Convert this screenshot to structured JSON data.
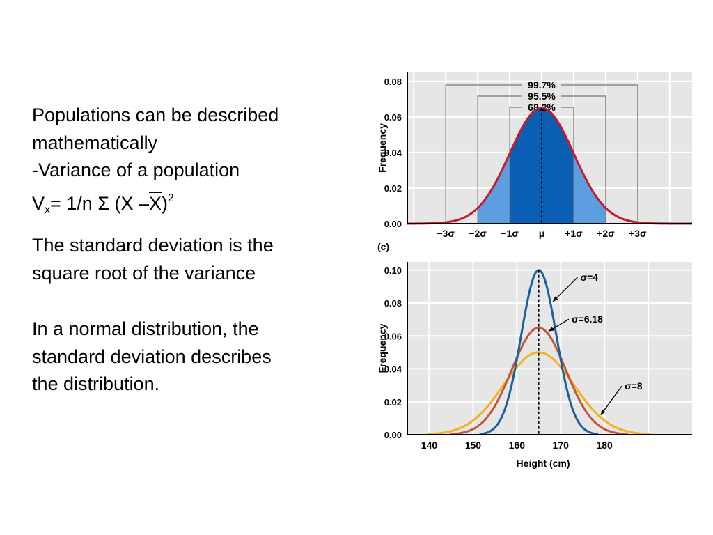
{
  "text": {
    "line1": "Populations can be described",
    "line2": "mathematically",
    "line3": "-Variance of a population",
    "formula": {
      "v": "V",
      "sub": "x",
      "eq": "= 1/n Σ (X –",
      "xbar": "X",
      "close": ")",
      "sup": "2"
    },
    "p2_line1": "The standard deviation is the",
    "p2_line2": "square root of the variance",
    "p3_line1": "In a normal distribution, the",
    "p3_line2": "standard deviation describes",
    "p3_line3": "the distribution."
  },
  "panel_label": "(c)",
  "colors": {
    "panel_bg": "#e6e6e6",
    "curve_red": "#c8182b",
    "fill_dark": "#0a5fb4",
    "fill_light": "#5b9fe0",
    "sigma4": "#1b5fa0",
    "sigma618": "#c0553a",
    "sigma8": "#f2b21c"
  },
  "chart_data": [
    {
      "type": "area",
      "ylabel": "Frequency",
      "ylim": [
        0,
        0.085
      ],
      "yticks": [
        "0.00",
        "0.02",
        "0.04",
        "0.06",
        "0.08"
      ],
      "xticks": [
        "−3σ",
        "−2σ",
        "−1σ",
        "μ",
        "+1σ",
        "+2σ",
        "+3σ"
      ],
      "xrange_sigma": [
        -4.2,
        4.7
      ],
      "peak": 0.065,
      "grid": true,
      "brackets": [
        {
          "label": "99.7%",
          "from": -3,
          "to": 3
        },
        {
          "label": "95.5%",
          "from": -2,
          "to": 2
        },
        {
          "label": "68.2%",
          "from": -1,
          "to": 1
        }
      ]
    },
    {
      "type": "line",
      "xlabel": "Height (cm)",
      "ylabel": "Frequency",
      "xlim": [
        135,
        200
      ],
      "ylim": [
        0,
        0.105
      ],
      "xticks": [
        "140",
        "150",
        "160",
        "170",
        "180"
      ],
      "yticks": [
        "0.00",
        "0.02",
        "0.04",
        "0.06",
        "0.08",
        "0.10"
      ],
      "mean": 165,
      "grid": true,
      "series": [
        {
          "name": "σ=4",
          "sd": 4,
          "peak": 0.1
        },
        {
          "name": "σ=6.18",
          "sd": 6.18,
          "peak": 0.065
        },
        {
          "name": "σ=8",
          "sd": 8,
          "peak": 0.05
        }
      ]
    }
  ]
}
